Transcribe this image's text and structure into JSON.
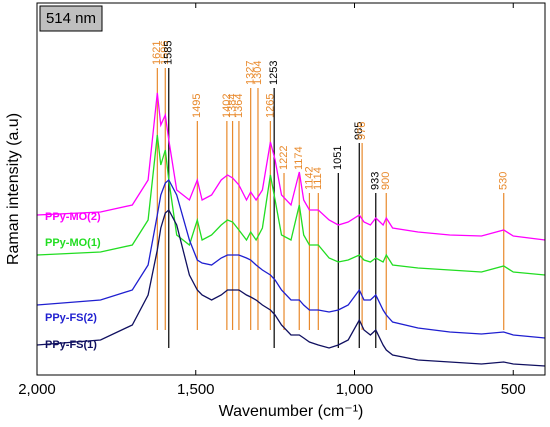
{
  "chart_data": {
    "type": "line",
    "label_box": "514 nm",
    "xlabel": "Wavenumber (cm⁻¹)",
    "ylabel": "Raman intensity (a.u)",
    "xlim": [
      2000,
      400
    ],
    "ylim": [
      0,
      372
    ],
    "xticks": [
      {
        "value": 2000,
        "label": "2,000"
      },
      {
        "value": 1500,
        "label": "1,500"
      },
      {
        "value": 1000,
        "label": "1,000"
      },
      500
    ],
    "x": [
      2000,
      1800,
      1700,
      1650,
      1621,
      1610,
      1596,
      1585,
      1560,
      1520,
      1495,
      1480,
      1450,
      1420,
      1400,
      1384,
      1364,
      1340,
      1327,
      1310,
      1290,
      1265,
      1250,
      1230,
      1200,
      1174,
      1160,
      1142,
      1114,
      1080,
      1051,
      1020,
      985,
      970,
      950,
      933,
      910,
      900,
      880,
      800,
      700,
      600,
      530,
      500,
      400
    ],
    "series": [
      {
        "name": "PPy-MO(2)",
        "color": "#ff00ff",
        "values": [
          160,
          163,
          170,
          195,
          282,
          250,
          260,
          235,
          185,
          175,
          195,
          175,
          180,
          195,
          200,
          197,
          190,
          175,
          183,
          175,
          185,
          233,
          215,
          180,
          170,
          203,
          175,
          165,
          165,
          155,
          150,
          153,
          160,
          153,
          150,
          157,
          150,
          157,
          147,
          143,
          140,
          139,
          145,
          139,
          135
        ]
      },
      {
        "name": "PPy-MO(1)",
        "color": "#22dd22",
        "values": [
          120,
          123,
          130,
          155,
          240,
          210,
          225,
          195,
          140,
          130,
          155,
          135,
          140,
          150,
          155,
          153,
          145,
          135,
          143,
          135,
          147,
          200,
          175,
          140,
          135,
          170,
          140,
          130,
          130,
          117,
          113,
          115,
          120,
          115,
          113,
          117,
          113,
          120,
          110,
          107,
          105,
          103,
          109,
          103,
          100
        ]
      },
      {
        "name": "PPy-FS(2)",
        "color": "#1f1fd0",
        "values": [
          70,
          75,
          85,
          110,
          160,
          180,
          192,
          195,
          180,
          135,
          115,
          112,
          110,
          117,
          120,
          120,
          120,
          117,
          115,
          110,
          105,
          100,
          95,
          85,
          75,
          75,
          70,
          65,
          65,
          63,
          65,
          70,
          85,
          75,
          75,
          80,
          65,
          60,
          53,
          47,
          43,
          41,
          43,
          40,
          37
        ]
      },
      {
        "name": "PPy-FS(1)",
        "color": "#101060",
        "values": [
          30,
          35,
          50,
          80,
          125,
          147,
          162,
          165,
          150,
          100,
          85,
          80,
          75,
          80,
          85,
          85,
          85,
          80,
          78,
          75,
          70,
          65,
          60,
          50,
          40,
          40,
          37,
          33,
          30,
          27,
          30,
          35,
          55,
          45,
          40,
          45,
          30,
          25,
          20,
          15,
          13,
          11,
          13,
          11,
          9
        ]
      }
    ],
    "annotations": [
      {
        "x": 1621,
        "color": "#e8892b"
      },
      {
        "x": 1596,
        "color": "#e8892b"
      },
      {
        "x": 1585,
        "color": "#000000"
      },
      {
        "x": 1495,
        "color": "#e8892b"
      },
      {
        "x": 1402,
        "color": "#e8892b"
      },
      {
        "x": 1384,
        "color": "#e8892b"
      },
      {
        "x": 1364,
        "color": "#e8892b"
      },
      {
        "x": 1327,
        "color": "#e8892b"
      },
      {
        "x": 1304,
        "color": "#e8892b"
      },
      {
        "x": 1265,
        "color": "#e8892b"
      },
      {
        "x": 1253,
        "color": "#000000"
      },
      {
        "x": 1222,
        "color": "#e8892b"
      },
      {
        "x": 1174,
        "color": "#e8892b"
      },
      {
        "x": 1142,
        "color": "#e8892b"
      },
      {
        "x": 1114,
        "color": "#e8892b"
      },
      {
        "x": 1051,
        "color": "#000000"
      },
      {
        "x": 985,
        "color": "#000000"
      },
      {
        "x": 976,
        "color": "#e8892b"
      },
      {
        "x": 933,
        "color": "#000000"
      },
      {
        "x": 900,
        "color": "#e8892b"
      },
      {
        "x": 530,
        "color": "#e8892b"
      }
    ]
  }
}
